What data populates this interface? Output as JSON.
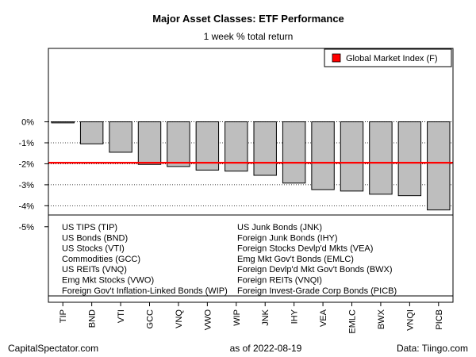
{
  "chart_data": {
    "type": "bar",
    "title": "Major Asset Classes: ETF Performance",
    "subtitle": "1 week % total return",
    "categories": [
      "TIP",
      "BND",
      "VTI",
      "GCC",
      "VNQ",
      "VWO",
      "WIP",
      "JNK",
      "IHY",
      "VEA",
      "EMLC",
      "BWX",
      "VNQI",
      "PICB"
    ],
    "values": [
      -0.05,
      -1.05,
      -1.45,
      -2.03,
      -2.13,
      -2.3,
      -2.35,
      -2.55,
      -2.92,
      -3.23,
      -3.3,
      -3.45,
      -3.52,
      -4.2
    ],
    "ytick_values": [
      0,
      -1,
      -2,
      -3,
      -4,
      -5
    ],
    "ytick_labels": [
      "0%",
      "-1%",
      "-2%",
      "-3%",
      "-4%",
      "-5%"
    ],
    "ylim": [
      -8.6,
      3.5
    ],
    "reference_line": {
      "label": "Global Market Index (F)",
      "value": -1.95,
      "color": "#ff0000"
    },
    "bar_color": "#bebebe",
    "legend_left": [
      "US TIPS (TIP)",
      "US Bonds (BND)",
      "US Stocks (VTI)",
      "Commodities (GCC)",
      "US REITs (VNQ)",
      "Emg Mkt Stocks (VWO)",
      "Foreign Gov't Inflation-Linked Bonds (WIP)"
    ],
    "legend_right": [
      "US Junk Bonds (JNK)",
      "Foreign Junk Bonds (IHY)",
      "Foreign Stocks Devlp'd Mkts (VEA)",
      "Emg Mkt Gov't Bonds (EMLC)",
      "Foreign Devlp'd Mkt Gov't Bonds (BWX)",
      "Foreign REITs (VNQI)",
      "Foreign Invest-Grade Corp Bonds (PICB)"
    ]
  },
  "footer": {
    "left": "CapitalSpectator.com",
    "center": "as of   2022-08-19",
    "right": "Data: Tiingo.com"
  }
}
